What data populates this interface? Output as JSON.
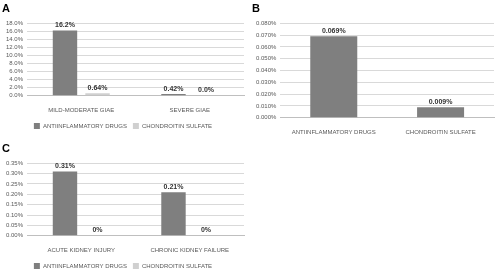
{
  "chart_data": [
    {
      "type": "bar",
      "title": "A",
      "categories": [
        "MILD-MODERATE GIAE",
        "SEVERE GIAE"
      ],
      "series": [
        {
          "name": "ANTIINFLAMMATORY DRUGS",
          "color": "#7f7f7f",
          "values": [
            16.2,
            0.42
          ],
          "value_labels": [
            "16.2%",
            "0.42%"
          ]
        },
        {
          "name": "CHONDROITIN SULFATE",
          "color": "#d0d0d0",
          "values": [
            0.64,
            0.0
          ],
          "value_labels": [
            "0.64%",
            "0.0%"
          ]
        }
      ],
      "ylim": [
        0,
        18
      ],
      "yticks": [
        {
          "value": 0,
          "label": "0.0%"
        },
        {
          "value": 2,
          "label": "2.0%"
        },
        {
          "value": 4,
          "label": "4.0%"
        },
        {
          "value": 6,
          "label": "6.0%"
        },
        {
          "value": 8,
          "label": "8.0%"
        },
        {
          "value": 10,
          "label": "10.0%"
        },
        {
          "value": 12,
          "label": "12.0%"
        },
        {
          "value": 14,
          "label": "14.0%"
        },
        {
          "value": 16,
          "label": "16.0%"
        },
        {
          "value": 18,
          "label": "18.0%"
        }
      ],
      "grid": true,
      "legend": "bottom",
      "data_labels": true
    },
    {
      "type": "bar",
      "title": "B",
      "categories": [
        "ANTIINFLAMMATORY DRUGS",
        "CHONDROITIN SULFATE"
      ],
      "values": [
        0.069,
        0.009
      ],
      "value_labels": [
        "0.069%",
        "0.009%"
      ],
      "color": "#7f7f7f",
      "ylim": [
        0,
        0.08
      ],
      "yticks": [
        {
          "value": 0,
          "label": "0.000%"
        },
        {
          "value": 0.01,
          "label": "0.010%"
        },
        {
          "value": 0.02,
          "label": "0.020%"
        },
        {
          "value": 0.03,
          "label": "0.030%"
        },
        {
          "value": 0.04,
          "label": "0.040%"
        },
        {
          "value": 0.05,
          "label": "0.050%"
        },
        {
          "value": 0.06,
          "label": "0.060%"
        },
        {
          "value": 0.07,
          "label": "0.070%"
        },
        {
          "value": 0.08,
          "label": "0.080%"
        }
      ],
      "grid": true,
      "data_labels": true
    },
    {
      "type": "bar",
      "title": "C",
      "categories": [
        "ACUTE KIDNEY INJURY",
        "CHRONIC KIDNEY FAILURE"
      ],
      "series": [
        {
          "name": "ANTIINFLAMMATORY DRUGS",
          "color": "#7f7f7f",
          "values": [
            0.31,
            0.21
          ],
          "value_labels": [
            "0.31%",
            "0.21%"
          ]
        },
        {
          "name": "CHONDROITIN SULFATE",
          "color": "#d0d0d0",
          "values": [
            0,
            0
          ],
          "value_labels": [
            "0%",
            "0%"
          ]
        }
      ],
      "ylim": [
        0,
        0.35
      ],
      "yticks": [
        {
          "value": 0,
          "label": "0.00%"
        },
        {
          "value": 0.05,
          "label": "0.05%"
        },
        {
          "value": 0.1,
          "label": "0.10%"
        },
        {
          "value": 0.15,
          "label": "0.15%"
        },
        {
          "value": 0.2,
          "label": "0.20%"
        },
        {
          "value": 0.25,
          "label": "0.25%"
        },
        {
          "value": 0.3,
          "label": "0.30%"
        },
        {
          "value": 0.35,
          "label": "0.35%"
        }
      ],
      "grid": true,
      "legend": "bottom",
      "data_labels": true
    }
  ]
}
